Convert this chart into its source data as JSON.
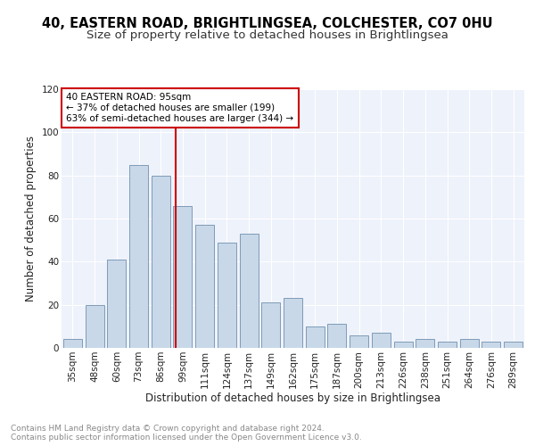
{
  "title1": "40, EASTERN ROAD, BRIGHTLINGSEA, COLCHESTER, CO7 0HU",
  "title2": "Size of property relative to detached houses in Brightlingsea",
  "xlabel": "Distribution of detached houses by size in Brightlingsea",
  "ylabel": "Number of detached properties",
  "categories": [
    "35sqm",
    "48sqm",
    "60sqm",
    "73sqm",
    "86sqm",
    "99sqm",
    "111sqm",
    "124sqm",
    "137sqm",
    "149sqm",
    "162sqm",
    "175sqm",
    "187sqm",
    "200sqm",
    "213sqm",
    "226sqm",
    "238sqm",
    "251sqm",
    "264sqm",
    "276sqm",
    "289sqm"
  ],
  "values": [
    4,
    20,
    41,
    85,
    80,
    66,
    57,
    49,
    53,
    21,
    23,
    10,
    11,
    6,
    7,
    3,
    4,
    3,
    4,
    3,
    3
  ],
  "bar_color": "#c8d8e8",
  "bar_edge_color": "#7090b0",
  "property_label": "40 EASTERN ROAD: 95sqm",
  "annotation_line1": "← 37% of detached houses are smaller (199)",
  "annotation_line2": "63% of semi-detached houses are larger (344) →",
  "vline_color": "#cc0000",
  "annotation_box_color": "#cc0000",
  "ylim": [
    0,
    120
  ],
  "yticks": [
    0,
    20,
    40,
    60,
    80,
    100,
    120
  ],
  "background_color": "#eef2fb",
  "grid_color": "#ffffff",
  "footer_text": "Contains HM Land Registry data © Crown copyright and database right 2024.\nContains public sector information licensed under the Open Government Licence v3.0.",
  "title1_fontsize": 10.5,
  "title2_fontsize": 9.5,
  "xlabel_fontsize": 8.5,
  "ylabel_fontsize": 8.5,
  "tick_fontsize": 7.5,
  "footer_fontsize": 6.5
}
